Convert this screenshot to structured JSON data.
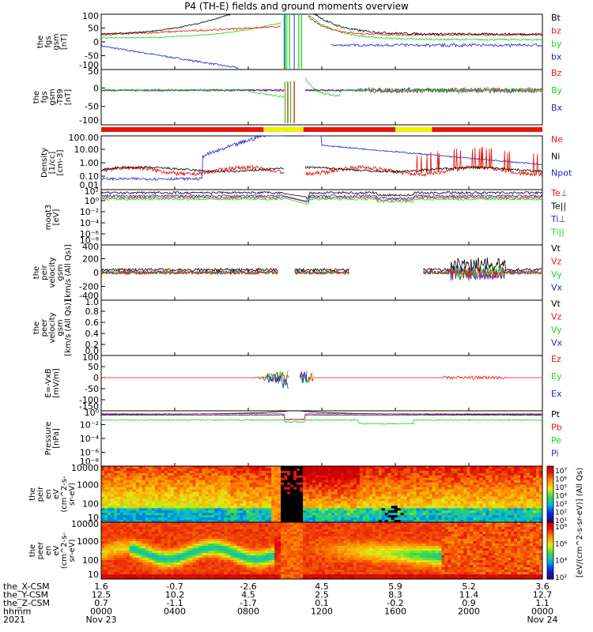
{
  "title": "P4 (TH-E) fields and ground moments overview",
  "colors": {
    "black": "#000000",
    "red": "#e8150b",
    "green": "#1ad81a",
    "blue": "#1c26d6",
    "yellow": "#f0f000"
  },
  "chart_data": [
    {
      "type": "line",
      "panel": "fgs_gsm",
      "ylabel": [
        "the",
        "fgs",
        "gsm",
        "[nT]"
      ],
      "yticks": [
        "100",
        "50",
        "0",
        "-50",
        "-100"
      ],
      "ylim": [
        -100,
        100
      ],
      "series": [
        {
          "name": "Bt",
          "color": "black"
        },
        {
          "name": "bz",
          "color": "red"
        },
        {
          "name": "by",
          "color": "green"
        },
        {
          "name": "bx",
          "color": "blue"
        }
      ]
    },
    {
      "type": "line",
      "panel": "fgs_gsm_dtrend",
      "ylabel": [
        "the",
        "fgs",
        "gsm",
        "-T89",
        "[nT]"
      ],
      "yticks": [
        "50",
        "0",
        "-50",
        "-100"
      ],
      "ylim": [
        -125,
        75
      ],
      "series": [
        {
          "name": "Bz",
          "color": "red"
        },
        {
          "name": "By",
          "color": "green"
        },
        {
          "name": "Bx",
          "color": "blue"
        }
      ]
    },
    {
      "type": "line",
      "panel": "density",
      "ylabel": [
        "Density",
        "[1/cc]",
        "[cm-3]"
      ],
      "ylog": true,
      "yticks": [
        "100.00",
        "10.00",
        "1.00",
        "0.10",
        "0.01"
      ],
      "ylim": [
        0.01,
        100
      ],
      "series": [
        {
          "name": "Ne",
          "color": "red"
        },
        {
          "name": "Ni",
          "color": "black"
        },
        {
          "name": "Npot",
          "color": "blue"
        }
      ]
    },
    {
      "type": "line",
      "panel": "temperature",
      "ylabel": [
        "moqt3",
        "[eV]"
      ],
      "ylog": true,
      "yticks": [
        "10²",
        "10⁰",
        "10⁻²",
        "10⁻⁴",
        "10⁻⁶",
        "10⁻⁸"
      ],
      "series": [
        {
          "name": "Te⊥",
          "color": "red"
        },
        {
          "name": "Te||",
          "color": "black"
        },
        {
          "name": "Ti⊥",
          "color": "blue"
        },
        {
          "name": "Ti||",
          "color": "green"
        }
      ]
    },
    {
      "type": "line",
      "panel": "peir_velocity",
      "ylabel": [
        "the",
        "peir",
        "velocity",
        "gsm",
        "[km/s (All Qs)]"
      ],
      "yticks": [
        "400",
        "200",
        "0",
        "-200",
        "-400"
      ],
      "ylim": [
        -400,
        400
      ],
      "series": [
        {
          "name": "Vt",
          "color": "black"
        },
        {
          "name": "Vz",
          "color": "red"
        },
        {
          "name": "Vy",
          "color": "green"
        },
        {
          "name": "Vx",
          "color": "blue"
        }
      ]
    },
    {
      "type": "line",
      "panel": "peer_velocity",
      "ylabel": [
        "the",
        "peer",
        "velocity",
        "gsm",
        "[km/s (All Qs)]"
      ],
      "yticks": [
        "1.0",
        "0.8",
        "0.6",
        "0.4",
        "0.2",
        "0.0"
      ],
      "ylim": [
        0,
        1
      ],
      "series": [
        {
          "name": "Vt",
          "color": "black"
        },
        {
          "name": "Vz",
          "color": "red"
        },
        {
          "name": "Vy",
          "color": "green"
        },
        {
          "name": "Vx",
          "color": "blue"
        }
      ]
    },
    {
      "type": "line",
      "panel": "efield",
      "ylabel": [
        "E=-VxB",
        "[mV/m]"
      ],
      "yticks": [
        "100",
        "50",
        "0",
        "-50",
        "-100",
        "-150"
      ],
      "ylim": [
        -150,
        100
      ],
      "series": [
        {
          "name": "Ez",
          "color": "red"
        },
        {
          "name": "Ey",
          "color": "green"
        },
        {
          "name": "Ex",
          "color": "blue"
        }
      ]
    },
    {
      "type": "line",
      "panel": "pressure",
      "ylabel": [
        "Pressure",
        "[nPa]"
      ],
      "ylog": true,
      "yticks": [
        "10⁰",
        "10⁻²",
        "10⁻⁴",
        "10⁻⁶",
        "10⁻⁸"
      ],
      "series": [
        {
          "name": "Pt",
          "color": "black"
        },
        {
          "name": "Pb",
          "color": "red"
        },
        {
          "name": "Pe",
          "color": "green"
        },
        {
          "name": "Pi",
          "color": "blue"
        }
      ]
    },
    {
      "type": "heatmap",
      "panel": "peir_spectrogram",
      "ylabel": [
        "the",
        "peir",
        "en",
        "eV",
        "(cm^2-s-",
        "sr-eV)"
      ],
      "ylog": true,
      "yticks": [
        "10000",
        "1000",
        "100",
        "10"
      ],
      "colorbar_ticks": [
        "10⁷",
        "10⁶",
        "10⁵",
        "10⁴",
        "10³",
        "10²",
        "10¹"
      ],
      "colorbar_label": "[eV/(cm^2-s-sr-eV)] (All Qs)"
    },
    {
      "type": "heatmap",
      "panel": "peer_spectrogram",
      "ylabel": [
        "the",
        "peer",
        "en",
        "eV",
        "(cm^2-s-",
        "sr-eV)"
      ],
      "ylog": true,
      "yticks": [
        "10000",
        "1000",
        "100",
        "10"
      ],
      "colorbar_ticks": [
        "10⁸",
        "10⁶",
        "10⁴",
        "10²"
      ]
    }
  ],
  "orbit_bar": [
    {
      "from": "0000",
      "to": "0850",
      "color": "red"
    },
    {
      "from": "0850",
      "to": "1100",
      "color": "yellow"
    },
    {
      "from": "1100",
      "to": "1600",
      "color": "red"
    },
    {
      "from": "1600",
      "to": "1800",
      "color": "yellow"
    },
    {
      "from": "1800",
      "to": "2400",
      "color": "red"
    }
  ],
  "time_axis": {
    "rows": [
      {
        "label": "the_X-CSM",
        "values": [
          "1.6",
          "-0.7",
          "-2.6",
          "4.5",
          "5.9",
          "5.2",
          "3.6"
        ]
      },
      {
        "label": "the_Y-CSM",
        "values": [
          "12.5",
          "10.2",
          "4.5",
          "2.5",
          "8.3",
          "11.4",
          "12.7"
        ]
      },
      {
        "label": "the_Z-CSM",
        "values": [
          "0.7",
          "-1.1",
          "-1.7",
          "0.1",
          "-0.2",
          "0.9",
          "1.1"
        ]
      },
      {
        "label": "hhmm",
        "values": [
          "0000",
          "0400",
          "0800",
          "1200",
          "1600",
          "2000",
          "0000"
        ]
      },
      {
        "label": "2021",
        "values": [
          "Nov 23",
          "",
          "",
          "",
          "",
          "",
          "Nov 24"
        ]
      }
    ]
  }
}
